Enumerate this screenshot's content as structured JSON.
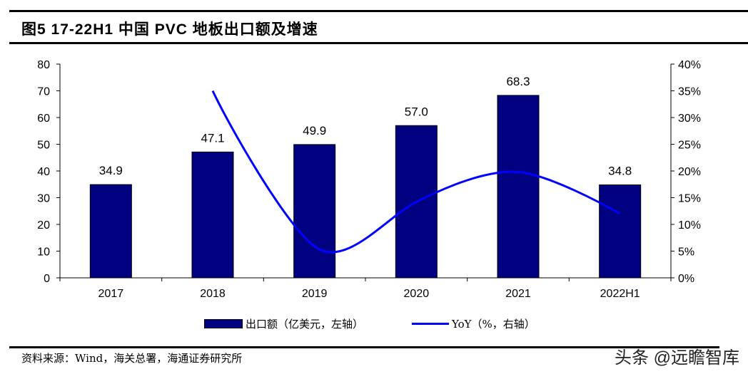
{
  "title": "图5   17-22H1 中国 PVC 地板出口额及增速",
  "source": "资料来源：Wind，海关总署，海通证券研究所",
  "watermark": "头条 @远瞻智库",
  "chart_data": {
    "type": "bar+line",
    "categories": [
      "2017",
      "2018",
      "2019",
      "2020",
      "2021",
      "2022H1"
    ],
    "series": [
      {
        "name": "出口额（亿美元，左轴）",
        "type": "bar",
        "axis": "left",
        "color": "#000080",
        "values": [
          34.9,
          47.1,
          49.9,
          57.0,
          68.3,
          34.8
        ],
        "labels": [
          "34.9",
          "47.1",
          "49.9",
          "57.0",
          "68.3",
          "34.8"
        ]
      },
      {
        "name": "YoY（%，右轴）",
        "type": "line",
        "axis": "right",
        "color": "#0000ff",
        "values": [
          null,
          35.0,
          5.9,
          14.2,
          19.8,
          12.0
        ]
      }
    ],
    "left_axis": {
      "range": [
        0,
        80
      ],
      "ticks": [
        "0",
        "10",
        "20",
        "30",
        "40",
        "50",
        "60",
        "70",
        "80"
      ]
    },
    "right_axis": {
      "range": [
        0,
        40
      ],
      "ticks": [
        "0%",
        "5%",
        "10%",
        "15%",
        "20%",
        "25%",
        "30%",
        "35%",
        "40%"
      ]
    },
    "grid": false,
    "legend": "bottom"
  }
}
